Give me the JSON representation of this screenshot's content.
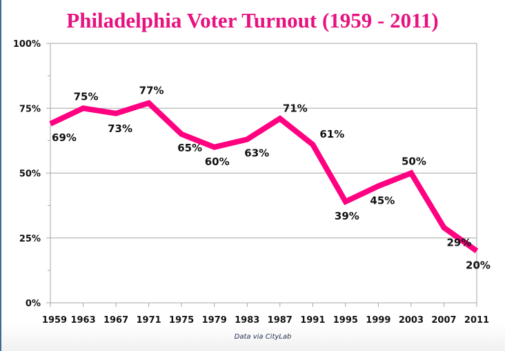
{
  "chart_data": {
    "type": "line",
    "title": "Philadelphia Voter Turnout (1959 - 2011)",
    "xlabel": "",
    "ylabel": "",
    "x": [
      "1959",
      "1963",
      "1967",
      "1971",
      "1975",
      "1979",
      "1983",
      "1987",
      "1991",
      "1995",
      "1999",
      "2003",
      "2007",
      "2011"
    ],
    "series": [
      {
        "name": "Voter Turnout",
        "values": [
          69,
          75,
          73,
          77,
          65,
          60,
          63,
          71,
          61,
          39,
          45,
          50,
          29,
          20
        ],
        "color": "#ff0080"
      }
    ],
    "data_labels": [
      "69%",
      "75%",
      "73%",
      "77%",
      "65%",
      "60%",
      "63%",
      "71%",
      "61%",
      "39%",
      "45%",
      "50%",
      "29%",
      "20%"
    ],
    "ylim": [
      0,
      100
    ],
    "yticks": [
      0,
      25,
      50,
      75,
      100
    ],
    "ytick_labels": [
      "0%",
      "25%",
      "50%",
      "75%",
      "100%"
    ],
    "grid": true,
    "legend": "none",
    "source": "Data via CityLab"
  }
}
